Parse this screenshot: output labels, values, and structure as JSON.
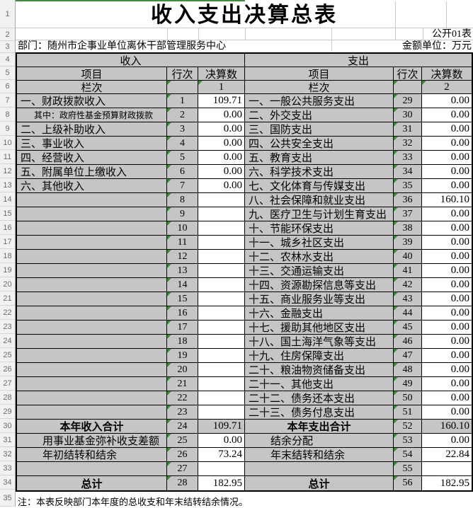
{
  "sheet": {
    "title": "收入支出决算总表",
    "doc_label": "公开01表",
    "department": "部门：随州市企事业单位离休干部管理服务中心",
    "unit_label": "金额单位：万元",
    "note": "注：本表反映部门本年度的总收支和年末结转结余情况。"
  },
  "header": {
    "income_group": "收入",
    "expense_group": "支出",
    "item": "项目",
    "line": "行次",
    "amount": "决算数",
    "column_index_label": "栏次",
    "income_col_index": "1",
    "expense_col_index": "2"
  },
  "gutter_rows": [
    "1",
    "2",
    "3",
    "4",
    "5",
    "6",
    "7",
    "8",
    "9",
    "10",
    "11",
    "12",
    "13",
    "14",
    "15",
    "16",
    "17",
    "18",
    "19",
    "20",
    "21",
    "22",
    "23",
    "24",
    "25",
    "26",
    "27",
    "28",
    "29",
    "30",
    "31",
    "32",
    "33",
    "34",
    "35"
  ],
  "colors": {
    "cell_gray": "#c5c5c5",
    "flag_green": "#2f8f3f",
    "border_black": "#000000",
    "gutter_bg": "#f1f1f1"
  },
  "rows": [
    {
      "income": {
        "item": "一、财政拨款收入",
        "style": "main",
        "line": "1",
        "amount": "109.71",
        "amount_bg": "white"
      },
      "expense": {
        "item": "一、一般公共服务支出",
        "style": "main",
        "line": "29",
        "amount": "0.00",
        "amount_bg": "white"
      }
    },
    {
      "income": {
        "item": "其中：政府性基金预算财政拨款",
        "style": "sub",
        "line": "2",
        "amount": "0.00",
        "amount_bg": "white"
      },
      "expense": {
        "item": "二、外交支出",
        "style": "main",
        "line": "30",
        "amount": "0.00",
        "amount_bg": "white"
      }
    },
    {
      "income": {
        "item": "二、上级补助收入",
        "style": "main",
        "line": "3",
        "amount": "0.00",
        "amount_bg": "white"
      },
      "expense": {
        "item": "三、国防支出",
        "style": "main",
        "line": "31",
        "amount": "0.00",
        "amount_bg": "white"
      }
    },
    {
      "income": {
        "item": "三、事业收入",
        "style": "main",
        "line": "4",
        "amount": "0.00",
        "amount_bg": "white"
      },
      "expense": {
        "item": "四、公共安全支出",
        "style": "main",
        "line": "32",
        "amount": "0.00",
        "amount_bg": "white"
      }
    },
    {
      "income": {
        "item": "四、经营收入",
        "style": "main",
        "line": "5",
        "amount": "0.00",
        "amount_bg": "white"
      },
      "expense": {
        "item": "五、教育支出",
        "style": "main",
        "line": "33",
        "amount": "0.00",
        "amount_bg": "white"
      }
    },
    {
      "income": {
        "item": "五、附属单位上缴收入",
        "style": "main",
        "line": "6",
        "amount": "0.00",
        "amount_bg": "white"
      },
      "expense": {
        "item": "六、科学技术支出",
        "style": "main",
        "line": "34",
        "amount": "0.00",
        "amount_bg": "white"
      }
    },
    {
      "income": {
        "item": "六、其他收入",
        "style": "main",
        "line": "7",
        "amount": "0.00",
        "amount_bg": "white"
      },
      "expense": {
        "item": "七、文化体育与传媒支出",
        "style": "main",
        "line": "35",
        "amount": "0.00",
        "amount_bg": "white"
      }
    },
    {
      "income": {
        "item": "",
        "style": "empty",
        "line": "8",
        "amount": "",
        "amount_bg": "white"
      },
      "expense": {
        "item": "八、社会保障和就业支出",
        "style": "main",
        "line": "36",
        "amount": "160.10",
        "amount_bg": "white"
      }
    },
    {
      "income": {
        "item": "",
        "style": "empty",
        "line": "9",
        "amount": "",
        "amount_bg": "white"
      },
      "expense": {
        "item": "九、医疗卫生与计划生育支出",
        "style": "main",
        "line": "37",
        "amount": "0.00",
        "amount_bg": "white"
      }
    },
    {
      "income": {
        "item": "",
        "style": "empty",
        "line": "10",
        "amount": "",
        "amount_bg": "white"
      },
      "expense": {
        "item": "十、节能环保支出",
        "style": "main",
        "line": "38",
        "amount": "0.00",
        "amount_bg": "white"
      }
    },
    {
      "income": {
        "item": "",
        "style": "empty",
        "line": "11",
        "amount": "",
        "amount_bg": "white"
      },
      "expense": {
        "item": "十一、城乡社区支出",
        "style": "main",
        "line": "39",
        "amount": "0.00",
        "amount_bg": "white"
      }
    },
    {
      "income": {
        "item": "",
        "style": "empty",
        "line": "12",
        "amount": "",
        "amount_bg": "white"
      },
      "expense": {
        "item": "十二、农林水支出",
        "style": "main",
        "line": "40",
        "amount": "0.00",
        "amount_bg": "white"
      }
    },
    {
      "income": {
        "item": "",
        "style": "empty",
        "line": "13",
        "amount": "",
        "amount_bg": "white"
      },
      "expense": {
        "item": "十三、交通运输支出",
        "style": "main",
        "line": "41",
        "amount": "0.00",
        "amount_bg": "white"
      }
    },
    {
      "income": {
        "item": "",
        "style": "empty",
        "line": "14",
        "amount": "",
        "amount_bg": "white"
      },
      "expense": {
        "item": "十四、资源勘探信息等支出",
        "style": "main",
        "line": "42",
        "amount": "0.00",
        "amount_bg": "white"
      }
    },
    {
      "income": {
        "item": "",
        "style": "empty",
        "line": "15",
        "amount": "",
        "amount_bg": "white"
      },
      "expense": {
        "item": "十五、商业服务业等支出",
        "style": "main",
        "line": "43",
        "amount": "0.00",
        "amount_bg": "white"
      }
    },
    {
      "income": {
        "item": "",
        "style": "empty",
        "line": "16",
        "amount": "",
        "amount_bg": "white"
      },
      "expense": {
        "item": "十六、金融支出",
        "style": "main",
        "line": "44",
        "amount": "0.00",
        "amount_bg": "white"
      }
    },
    {
      "income": {
        "item": "",
        "style": "empty",
        "line": "17",
        "amount": "",
        "amount_bg": "white"
      },
      "expense": {
        "item": "十七、援助其他地区支出",
        "style": "main",
        "line": "45",
        "amount": "0.00",
        "amount_bg": "white"
      }
    },
    {
      "income": {
        "item": "",
        "style": "empty",
        "line": "18",
        "amount": "",
        "amount_bg": "white"
      },
      "expense": {
        "item": "十八、国土海洋气象等支出",
        "style": "main",
        "line": "46",
        "amount": "0.00",
        "amount_bg": "white"
      }
    },
    {
      "income": {
        "item": "",
        "style": "empty",
        "line": "19",
        "amount": "",
        "amount_bg": "white"
      },
      "expense": {
        "item": "十九、住房保障支出",
        "style": "main",
        "line": "47",
        "amount": "0.00",
        "amount_bg": "white"
      }
    },
    {
      "income": {
        "item": "",
        "style": "empty",
        "line": "20",
        "amount": "",
        "amount_bg": "white"
      },
      "expense": {
        "item": "二十、粮油物资储备支出",
        "style": "main",
        "line": "48",
        "amount": "0.00",
        "amount_bg": "white"
      }
    },
    {
      "income": {
        "item": "",
        "style": "empty",
        "line": "21",
        "amount": "",
        "amount_bg": "white"
      },
      "expense": {
        "item": "二十一、其他支出",
        "style": "main",
        "line": "49",
        "amount": "0.00",
        "amount_bg": "white"
      }
    },
    {
      "income": {
        "item": "",
        "style": "empty",
        "line": "22",
        "amount": "",
        "amount_bg": "white"
      },
      "expense": {
        "item": "二十二、债务还本支出",
        "style": "main",
        "line": "50",
        "amount": "0.00",
        "amount_bg": "white"
      }
    },
    {
      "income": {
        "item": "",
        "style": "empty",
        "line": "23",
        "amount": "",
        "amount_bg": "white"
      },
      "expense": {
        "item": "二十三、债务付息支出",
        "style": "main",
        "line": "51",
        "amount": "0.00",
        "amount_bg": "white"
      }
    },
    {
      "income": {
        "item": "本年收入合计",
        "style": "summary",
        "line": "24",
        "amount": "109.71",
        "amount_bg": "gray"
      },
      "expense": {
        "item": "本年支出合计",
        "style": "summary",
        "line": "52",
        "amount": "160.10",
        "amount_bg": "gray"
      }
    },
    {
      "income": {
        "item": "用事业基金弥补收支差额",
        "style": "indent2",
        "line": "25",
        "amount": "0.00",
        "amount_bg": "white"
      },
      "expense": {
        "item": "结余分配",
        "style": "indent2",
        "line": "53",
        "amount": "0.00",
        "amount_bg": "white"
      }
    },
    {
      "income": {
        "item": "年初结转和结余",
        "style": "indent2",
        "line": "26",
        "amount": "73.24",
        "amount_bg": "white"
      },
      "expense": {
        "item": "年末结转和结余",
        "style": "indent2",
        "line": "54",
        "amount": "22.84",
        "amount_bg": "white"
      }
    },
    {
      "income": {
        "item": "",
        "style": "empty",
        "line": "27",
        "amount": "",
        "amount_bg": "white"
      },
      "expense": {
        "item": "",
        "style": "empty",
        "line": "55",
        "amount": "",
        "amount_bg": "white"
      }
    },
    {
      "income": {
        "item": "总计",
        "style": "summary",
        "line": "28",
        "amount": "182.95",
        "amount_bg": "white"
      },
      "expense": {
        "item": "总计",
        "style": "summary",
        "line": "56",
        "amount": "182.95",
        "amount_bg": "white"
      }
    }
  ]
}
